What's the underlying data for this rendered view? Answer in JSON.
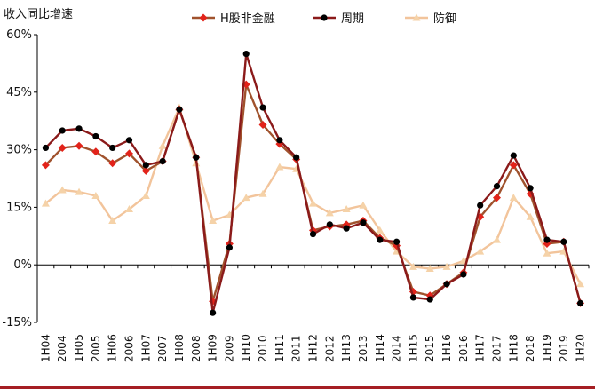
{
  "chart_data": {
    "type": "line",
    "title": "",
    "ylabel": "收入同比增速",
    "xlabel": "",
    "ylim": [
      -15,
      60
    ],
    "yticks": [
      -15,
      0,
      15,
      30,
      45,
      60
    ],
    "ytick_labels": [
      "-15%",
      "0%",
      "15%",
      "30%",
      "45%",
      "60%"
    ],
    "grid": false,
    "legend_position": "top",
    "categories": [
      "1H04",
      "2004",
      "1H05",
      "2005",
      "1H06",
      "2006",
      "1H07",
      "2007",
      "1H08",
      "2008",
      "1H09",
      "2009",
      "1H10",
      "2010",
      "1H11",
      "2011",
      "1H12",
      "2012",
      "1H13",
      "2013",
      "1H14",
      "2014",
      "1H15",
      "2015",
      "1H16",
      "2016",
      "1H17",
      "2017",
      "1H18",
      "2018",
      "1H19",
      "2019",
      "1H20"
    ],
    "series": [
      {
        "name": "H股非金融",
        "color": "#e2231a",
        "line_color": "#a0522d",
        "marker": "diamond",
        "values": [
          26,
          30.5,
          31,
          29.5,
          26.5,
          29,
          24.5,
          27,
          40.5,
          28,
          -9.5,
          5.5,
          47,
          36.5,
          31.5,
          27.5,
          9,
          10,
          10.5,
          11.5,
          7,
          5,
          -7,
          -8,
          -5,
          -2,
          12.5,
          17.5,
          26,
          18.5,
          5.5,
          6,
          -10
        ]
      },
      {
        "name": "周期",
        "color": "#000000",
        "line_color": "#8b1a1a",
        "marker": "circle",
        "values": [
          30.5,
          35,
          35.5,
          33.5,
          30.5,
          32.5,
          26,
          27,
          40.5,
          28,
          -12.5,
          4.5,
          55,
          41,
          32.5,
          28,
          8,
          10.5,
          9.5,
          11,
          6.5,
          6,
          -8.5,
          -9,
          -5,
          -2.5,
          15.5,
          20.5,
          28.5,
          20,
          6.5,
          6,
          -10
        ]
      },
      {
        "name": "防御",
        "color": "#f5d2a8",
        "line_color": "#f2c49b",
        "marker": "triangle",
        "values": [
          16,
          19.5,
          19,
          18,
          11.5,
          14.5,
          18,
          31,
          41,
          26.5,
          11.5,
          13,
          17.5,
          18.5,
          25.5,
          25,
          16,
          13.5,
          14.5,
          15.5,
          9,
          3.5,
          -0.5,
          -1,
          -0.5,
          1,
          3.5,
          6.5,
          17.5,
          12.5,
          3,
          3.5,
          -5
        ]
      }
    ]
  }
}
